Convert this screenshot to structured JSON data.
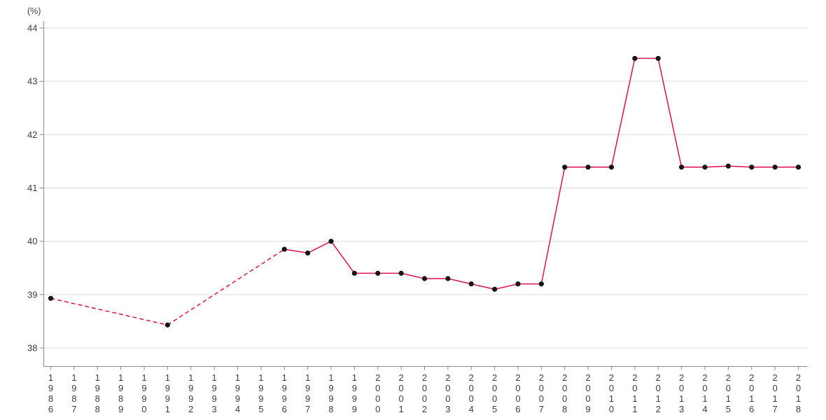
{
  "chart_data": {
    "type": "line",
    "title": "",
    "subtitle": "",
    "xlabel": "",
    "ylabel": "(%)",
    "ylim": [
      38,
      44
    ],
    "y_ticks": [
      44,
      43,
      42,
      41,
      40,
      39,
      38
    ],
    "x_range": [
      1986,
      2018
    ],
    "x_tick_labels": [
      "1986",
      "1987",
      "1988",
      "1989",
      "1990",
      "1991",
      "1992",
      "1993",
      "1994",
      "1995",
      "1996",
      "1997",
      "1998",
      "1999",
      "2000",
      "2001",
      "2002",
      "2003",
      "2004",
      "2005",
      "2006",
      "2007",
      "2008",
      "2009",
      "2010",
      "2011",
      "2012",
      "2013",
      "2014",
      "2015",
      "2016",
      "2017",
      "2018"
    ],
    "grid": "horizontal",
    "legend": "none",
    "series": [
      {
        "name": "percent-series",
        "line_color": "#e0124a",
        "marker": "circle",
        "marker_color": "#141414",
        "dashed_segments": [
          [
            1986,
            1996
          ]
        ],
        "points": [
          [
            1986,
            38.93
          ],
          [
            1991,
            38.43
          ],
          [
            1996,
            39.85
          ],
          [
            1997,
            39.78
          ],
          [
            1998,
            40.0
          ],
          [
            1999,
            39.4
          ],
          [
            2000,
            39.4
          ],
          [
            2001,
            39.4
          ],
          [
            2002,
            39.3
          ],
          [
            2003,
            39.3
          ],
          [
            2004,
            39.2
          ],
          [
            2005,
            39.1
          ],
          [
            2006,
            39.2
          ],
          [
            2007,
            39.2
          ],
          [
            2008,
            41.39
          ],
          [
            2009,
            41.39
          ],
          [
            2010,
            41.39
          ],
          [
            2011,
            43.43
          ],
          [
            2012,
            43.43
          ],
          [
            2013,
            41.39
          ],
          [
            2014,
            41.39
          ],
          [
            2015,
            41.41
          ],
          [
            2016,
            41.39
          ],
          [
            2017,
            41.39
          ],
          [
            2018,
            41.39
          ]
        ]
      }
    ],
    "colors": {
      "grid": "#dcdcdc",
      "axis": "#8a8a8a",
      "tick_text": "#3d3d3d",
      "background": "#ffffff"
    }
  }
}
